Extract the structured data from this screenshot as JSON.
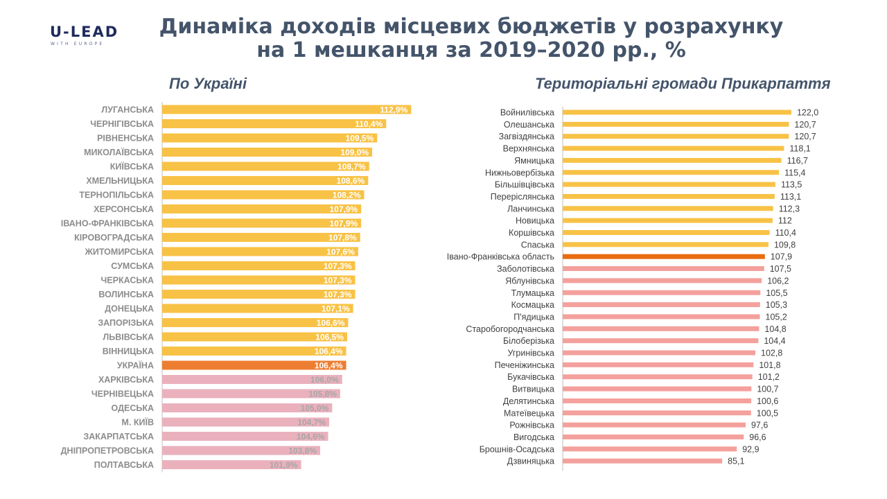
{
  "logo": {
    "main": "U-LEAD",
    "sub": "WITH EUROPE"
  },
  "title": {
    "line1": "Динаміка доходів місцевих бюджетів у розрахунку",
    "line2": "на 1 мешканця за 2019–2020 рр., %"
  },
  "colors": {
    "above": "#f8c246",
    "highlight_left": "#ed7d31",
    "highlight_right": "#e86c10",
    "below_left": "#eab1bd",
    "below_right": "#f4a09c",
    "text_grey": "#8c8c8c",
    "label_white": "#ffffff",
    "label_grey": "#a6a6a6",
    "axis": "#bfbfbf"
  },
  "chart_data": [
    {
      "type": "bar",
      "orientation": "horizontal",
      "title": "По Україні",
      "categories": [
        "ЛУГАНСЬКА",
        "ЧЕРНІГІВСЬКА",
        "РІВНЕНСЬКА",
        "МИКОЛАЇВСЬКА",
        "КИЇВСЬКА",
        "ХМЕЛЬНИЦЬКА",
        "ТЕРНОПІЛЬСЬКА",
        "ХЕРСОНСЬКА",
        "ІВАНО-ФРАНКІВСЬКА",
        "КІРОВОГРАДСЬКА",
        "ЖИТОМИРСЬКА",
        "СУМСЬКА",
        "ЧЕРКАСЬКА",
        "ВОЛИНСЬКА",
        "ДОНЕЦЬКА",
        "ЗАПОРІЗЬКА",
        "ЛЬВІВСЬКА",
        "ВІННИЦЬКА",
        "УКРАЇНА",
        "ХАРКІВСЬКА",
        "ЧЕРНІВЕЦЬКА",
        "ОДЕСЬКА",
        "М. КИЇВ",
        "ЗАКАРПАТСЬКА",
        "ДНІПРОПЕТРОВСЬКА",
        "ПОЛТАВСЬКА"
      ],
      "values": [
        112.9,
        110.4,
        109.5,
        109.0,
        108.7,
        108.6,
        108.2,
        107.9,
        107.9,
        107.8,
        107.6,
        107.3,
        107.3,
        107.3,
        107.1,
        106.6,
        106.5,
        106.4,
        106.4,
        106.0,
        105.8,
        105.0,
        104.7,
        104.6,
        103.8,
        101.9
      ],
      "value_labels": [
        "112,9%",
        "110,4%",
        "109,5%",
        "109,0%",
        "108,7%",
        "108,6%",
        "108,2%",
        "107,9%",
        "107,9%",
        "107,8%",
        "107,6%",
        "107,3%",
        "107,3%",
        "107,3%",
        "107,1%",
        "106,6%",
        "106,5%",
        "106,4%",
        "106,4%",
        "106,0%",
        "105,8%",
        "105,0%",
        "104,7%",
        "104,6%",
        "103,8%",
        "101,9%"
      ],
      "groups": [
        "above",
        "above",
        "above",
        "above",
        "above",
        "above",
        "above",
        "above",
        "above",
        "above",
        "above",
        "above",
        "above",
        "above",
        "above",
        "above",
        "above",
        "above",
        "highlight",
        "below",
        "below",
        "below",
        "below",
        "below",
        "below",
        "below"
      ],
      "xlim": [
        88,
        113.5
      ]
    },
    {
      "type": "bar",
      "orientation": "horizontal",
      "title": "Територіальні громади Прикарпаття",
      "categories": [
        "Войнилівська",
        "Олешанська",
        "Загвіздянська",
        "Верхнянська",
        "Ямницька",
        "Нижньовербізька",
        "Більшівцівська",
        "Переріслянська",
        "Ланчинська",
        "Новицька",
        "Коршівська",
        "Спаська",
        "Івано-Франківська область",
        "Заболотівська",
        "Яблунівська",
        "Тлумацька",
        "Космацька",
        "П'ядицька",
        "Старобогородчанська",
        "Білоберізька",
        "Угринівська",
        "Печеніжинська",
        "Букачівська",
        "Витвицька",
        "Делятинська",
        "Матеївецька",
        "Рожнівська",
        "Вигодська",
        "Брошнів-Осадська",
        "Дзвиняцька"
      ],
      "values": [
        122.0,
        120.7,
        120.7,
        118.1,
        116.7,
        115.4,
        113.5,
        113.1,
        112.3,
        112,
        110.4,
        109.8,
        107.9,
        107.5,
        106.2,
        105.5,
        105.3,
        105.2,
        104.8,
        104.4,
        102.8,
        101.8,
        101.2,
        100.7,
        100.6,
        100.5,
        97.6,
        96.6,
        92.9,
        85.1
      ],
      "value_labels": [
        "122,0",
        "120,7",
        "120,7",
        "118,1",
        "116,7",
        "115,4",
        "113,5",
        "113,1",
        "112,3",
        "112",
        "110,4",
        "109,8",
        "107,9",
        "107,5",
        "106,2",
        "105,5",
        "105,3",
        "105,2",
        "104,8",
        "104,4",
        "102,8",
        "101,8",
        "101,2",
        "100,7",
        "100,6",
        "100,5",
        "97,6",
        "96,6",
        "92,9",
        "85,1"
      ],
      "groups": [
        "above",
        "above",
        "above",
        "above",
        "above",
        "above",
        "above",
        "above",
        "above",
        "above",
        "above",
        "above",
        "highlight",
        "below",
        "below",
        "below",
        "below",
        "below",
        "below",
        "below",
        "below",
        "below",
        "below",
        "below",
        "below",
        "below",
        "below",
        "below",
        "below",
        "below"
      ],
      "xlim": [
        0,
        123.5
      ]
    }
  ]
}
